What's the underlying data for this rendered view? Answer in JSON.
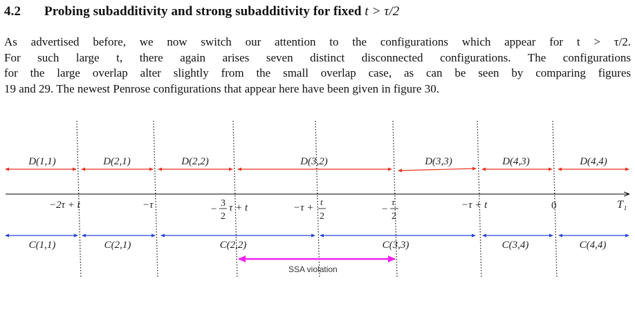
{
  "section": {
    "number": "4.2",
    "title_prefix": "Probing subadditivity and strong subadditivity for fixed",
    "title_math": "t > τ/2"
  },
  "paragraph": [
    "As advertised before, we now switch our attention to the configurations which appear for t > τ/2.",
    "For such large t, there again arises seven distinct disconnected configurations. The configurations",
    "for the large overlap alter slightly from the small overlap case, as can be seen by comparing figures",
    "19 and 29. The newest Penrose configurations that appear here have been given in figure 30."
  ],
  "figure": {
    "axis_label": "T₁",
    "ticks": [
      "−2τ + t",
      "−τ",
      "−3/2 τ + t",
      "−τ + t/2",
      "−τ/2",
      "−τ + t",
      "0"
    ],
    "d_intervals": [
      "D(1,1)",
      "D(2,1)",
      "D(2,2)",
      "D(3,2)",
      "D(3,3)",
      "D(4,3)",
      "D(4,4)"
    ],
    "c_intervals": [
      "C(1,1)",
      "C(2,1)",
      "C(2,2)",
      "C(3,3)",
      "C(3,4)",
      "C(4,4)"
    ],
    "violation_label": "SSA violation",
    "colors": {
      "d_arrows": "#e8321e",
      "c_arrows": "#2845d6",
      "violation": "#ee22ee",
      "axis": "#000000"
    }
  }
}
